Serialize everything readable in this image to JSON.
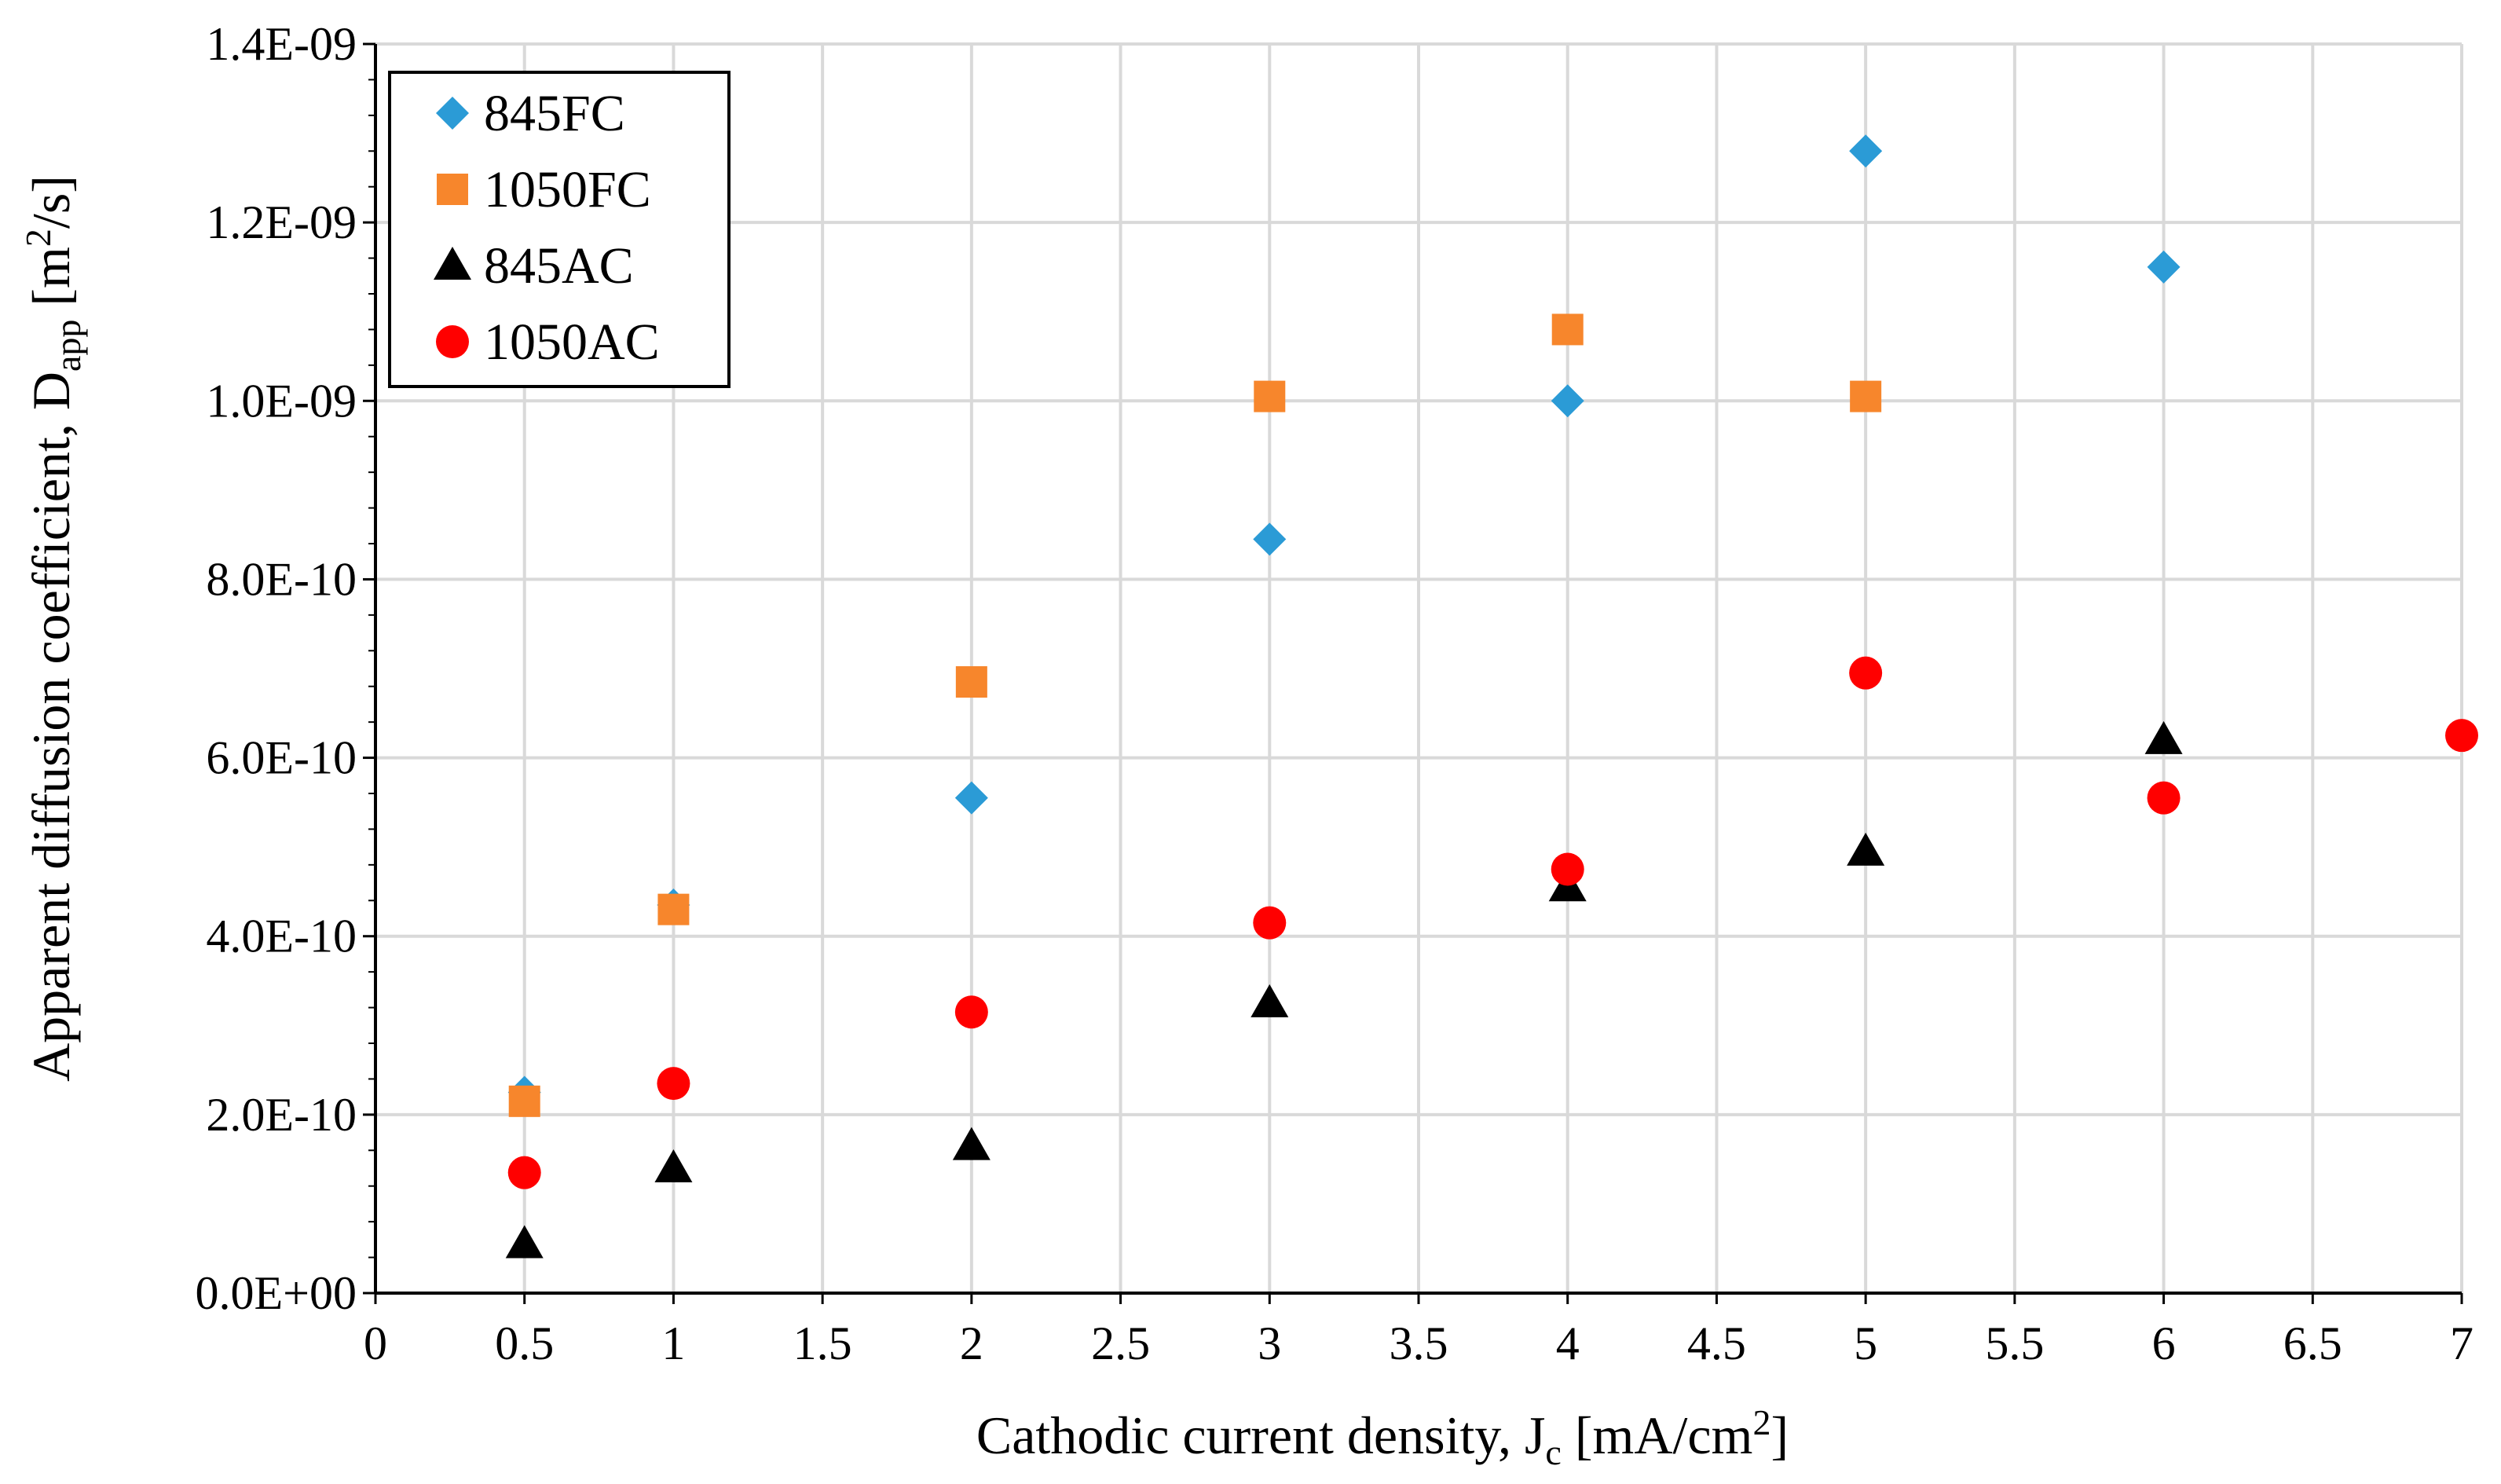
{
  "chart_data": {
    "type": "scatter",
    "title": "",
    "xlabel": {
      "main": "Cathodic current density, J",
      "subscript": "c",
      "unit_pre": " [mA/cm",
      "unit_sup": "2",
      "unit_post": "]"
    },
    "ylabel": {
      "main": "Apparent diffusion coefficient, D",
      "subscript": "app",
      "unit_pre": " [m",
      "unit_sup": "2",
      "unit_post": "/s]"
    },
    "xlim": [
      0,
      7
    ],
    "ylim": [
      0,
      1.4e-09
    ],
    "x_ticks": [
      0,
      0.5,
      1,
      1.5,
      2,
      2.5,
      3,
      3.5,
      4,
      4.5,
      5,
      5.5,
      6,
      6.5,
      7
    ],
    "x_tick_labels": [
      "0",
      "0.5",
      "1",
      "1.5",
      "2",
      "2.5",
      "3",
      "3.5",
      "4",
      "4.5",
      "5",
      "5.5",
      "6",
      "6.5",
      "7"
    ],
    "y_ticks": [
      0,
      2e-10,
      4e-10,
      6e-10,
      8e-10,
      1e-09,
      1.2e-09,
      1.4e-09
    ],
    "y_tick_labels": [
      "0.0E+00",
      "2.0E-10",
      "4.0E-10",
      "6.0E-10",
      "8.0E-10",
      "1.0E-09",
      "1.2E-09",
      "1.4E-09"
    ],
    "grid": true,
    "legend_position": "top-left",
    "series": [
      {
        "name": "845FC",
        "marker": "diamond",
        "color": "#2b9bd6",
        "x": [
          0.5,
          1,
          2,
          3,
          4,
          5,
          6
        ],
        "y": [
          2.25e-10,
          4.35e-10,
          5.55e-10,
          8.45e-10,
          1e-09,
          1.28e-09,
          1.15e-09
        ]
      },
      {
        "name": "1050FC",
        "marker": "square",
        "color": "#f7862c",
        "x": [
          0.5,
          1,
          2,
          3,
          4,
          5
        ],
        "y": [
          2.15e-10,
          4.3e-10,
          6.85e-10,
          1.005e-09,
          1.08e-09,
          1.005e-09
        ]
      },
      {
        "name": "845AC",
        "marker": "triangle",
        "color": "#000000",
        "x": [
          0.5,
          1,
          2,
          3,
          4,
          5,
          6
        ],
        "y": [
          5.5e-11,
          1.4e-10,
          1.65e-10,
          3.25e-10,
          4.55e-10,
          4.95e-10,
          6.2e-10
        ]
      },
      {
        "name": "1050AC",
        "marker": "circle",
        "color": "#ff0000",
        "x": [
          0.5,
          1,
          2,
          3,
          4,
          5,
          6,
          7
        ],
        "y": [
          1.35e-10,
          2.35e-10,
          3.15e-10,
          4.15e-10,
          4.75e-10,
          6.95e-10,
          5.55e-10,
          6.25e-10
        ]
      }
    ]
  }
}
